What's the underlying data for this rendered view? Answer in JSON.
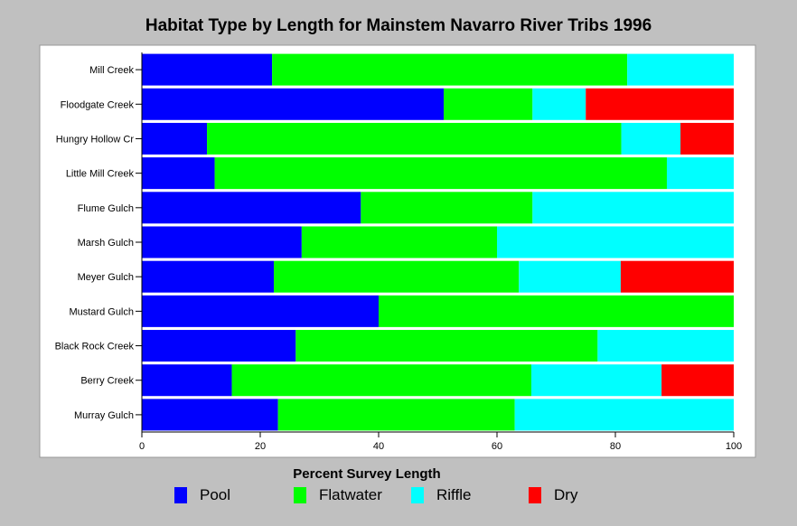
{
  "chart_data": {
    "type": "bar",
    "orientation": "horizontal",
    "stacked": true,
    "title": "Habitat Type by Length for Mainstem Navarro River Tribs 1996",
    "xlabel": "Percent Survey Length",
    "ylabel": "",
    "xlim": [
      0,
      100
    ],
    "xticks": [
      0,
      20,
      40,
      60,
      80,
      100
    ],
    "grid": false,
    "legend_position": "bottom",
    "categories": [
      "Mill Creek",
      "Floodgate Creek",
      "Hungry Hollow Cr",
      "Little Mill Creek",
      "Flume Gulch",
      "Marsh Gulch",
      "Meyer Gulch",
      "Mustard Gulch",
      "Black Rock Creek",
      "Berry Creek",
      "Murray Gulch"
    ],
    "series": [
      {
        "name": "Pool",
        "color": "#0000ff",
        "values": [
          22,
          51,
          11,
          12.3,
          37,
          27,
          22.3,
          40,
          26,
          15.2,
          23
        ]
      },
      {
        "name": "Flatwater",
        "color": "#00ff00",
        "values": [
          60,
          15,
          70,
          76.4,
          29,
          33,
          41.4,
          60,
          51,
          50.6,
          40
        ]
      },
      {
        "name": "Riffle",
        "color": "#00ffff",
        "values": [
          18,
          9,
          10,
          11.3,
          34,
          40,
          17.2,
          0,
          23,
          22,
          37
        ]
      },
      {
        "name": "Dry",
        "color": "#ff0000",
        "values": [
          0,
          25,
          9,
          0,
          0,
          0,
          19.1,
          0,
          0,
          12.2,
          0
        ]
      }
    ]
  }
}
